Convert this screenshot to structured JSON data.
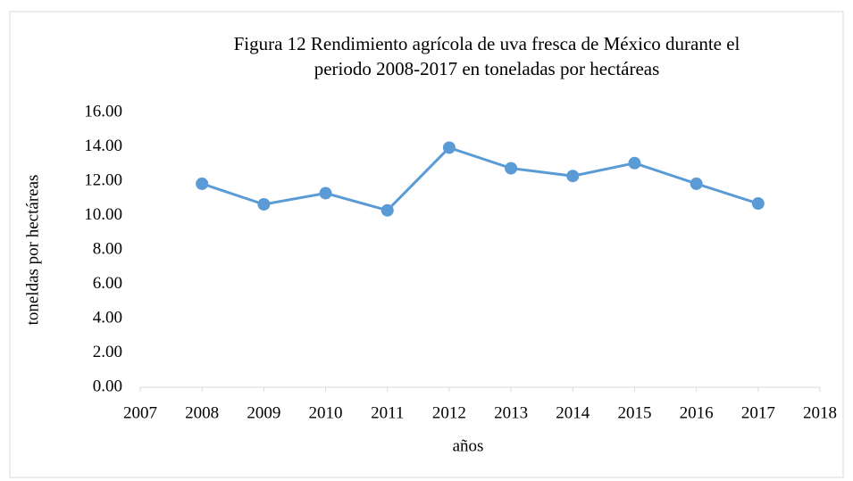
{
  "chart_data": {
    "type": "line",
    "title": [
      "Figura 12  Rendimiento agrícola de uva fresca de México durante el",
      "periodo 2008-2017 en toneladas por hectáreas"
    ],
    "x_label": "años",
    "y_label": "toneldas por hectáreas",
    "x": [
      2008,
      2009,
      2010,
      2011,
      2012,
      2013,
      2014,
      2015,
      2016,
      2017
    ],
    "series": [
      {
        "name": "rendimiento",
        "color": "#5b9bd5",
        "values": [
          11.85,
          10.65,
          11.3,
          10.3,
          13.95,
          12.75,
          12.3,
          13.05,
          11.85,
          10.7
        ]
      }
    ],
    "xlim": [
      2007,
      2018
    ],
    "xticks": [
      2007,
      2008,
      2009,
      2010,
      2011,
      2012,
      2013,
      2014,
      2015,
      2016,
      2017,
      2018
    ],
    "ylim": [
      0,
      16
    ],
    "yticks": [
      {
        "value": 0,
        "label": "0.00"
      },
      {
        "value": 2,
        "label": "2.00"
      },
      {
        "value": 4,
        "label": "4.00"
      },
      {
        "value": 6,
        "label": "6.00"
      },
      {
        "value": 8,
        "label": "8.00"
      },
      {
        "value": 10,
        "label": "10.00"
      },
      {
        "value": 12,
        "label": "12.00"
      },
      {
        "value": 14,
        "label": "14.00"
      },
      {
        "value": 16,
        "label": "16.00"
      }
    ],
    "grid": false
  }
}
